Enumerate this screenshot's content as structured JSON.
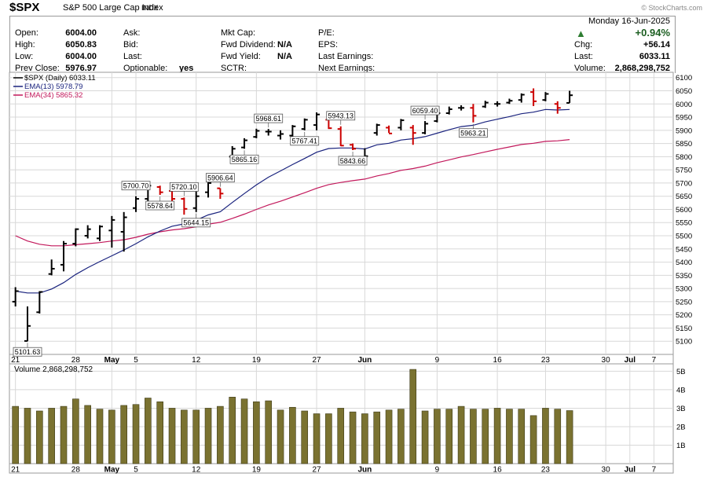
{
  "header": {
    "symbol": "$SPX",
    "name": "S&P 500 Large Cap Index",
    "exchange": "INDX",
    "brand": "© StockCharts.com"
  },
  "quote": {
    "open_label": "Open:",
    "open": "6004.00",
    "high_label": "High:",
    "high": "6050.83",
    "low_label": "Low:",
    "low": "6004.00",
    "prev_close_label": "Prev Close:",
    "prev_close": "5976.97",
    "ask_label": "Ask:",
    "bid_label": "Bid:",
    "last_label": "Last:",
    "optionable_label": "Optionable:",
    "optionable": "yes",
    "mktcap_label": "Mkt Cap:",
    "fwd_div_label": "Fwd Dividend:",
    "fwd_div": "N/A",
    "fwd_yield_label": "Fwd Yield:",
    "fwd_yield": "N/A",
    "sctr_label": "SCTR:",
    "pe_label": "P/E:",
    "eps_label": "EPS:",
    "last_earn_label": "Last Earnings:",
    "next_earn_label": "Next Earnings:",
    "date": "Monday  16-Jun-2025",
    "pct_change": "+0.94%",
    "chg_label": "Chg:",
    "chg": "+56.14",
    "last2_label": "Last:",
    "last": "6033.11",
    "volume_label": "Volume:",
    "volume": "2,868,298,752"
  },
  "colors": {
    "up_bar": "#000000",
    "down_bar": "#cc0000",
    "ema13": "#1a237e",
    "ema34": "#c2185b",
    "volume_bar": "#7a7230",
    "grid": "#d8d8d8",
    "up_arrow": "#2e7d32"
  },
  "chart_data": [
    {
      "type": "ohlc",
      "legend": [
        "$SPX (Daily) 6033.11",
        "EMA(13) 5978.79",
        "EMA(34) 5865.32"
      ],
      "ylim": [
        5050,
        6120
      ],
      "y_ticks": [
        5100,
        5150,
        5200,
        5250,
        5300,
        5350,
        5400,
        5450,
        5500,
        5550,
        5600,
        5650,
        5700,
        5750,
        5800,
        5850,
        5900,
        5950,
        6000,
        6050,
        6100
      ],
      "x_ticks": [
        {
          "label": "21",
          "day": 0
        },
        {
          "label": "28",
          "day": 5
        },
        {
          "label": "May",
          "day": 8,
          "bold": true
        },
        {
          "label": "5",
          "day": 10
        },
        {
          "label": "12",
          "day": 15
        },
        {
          "label": "19",
          "day": 20
        },
        {
          "label": "27",
          "day": 25
        },
        {
          "label": "Jun",
          "day": 29,
          "bold": true
        },
        {
          "label": "9",
          "day": 35
        },
        {
          "label": "16",
          "day": 40
        },
        {
          "label": "23",
          "day": 44
        },
        {
          "label": "30",
          "day": 49
        },
        {
          "label": "Jul",
          "day": 51,
          "bold": true
        },
        {
          "label": "7",
          "day": 53
        }
      ],
      "x_domain": [
        -0.5,
        54.6
      ],
      "bars": [
        [
          5232,
          5305,
          5250,
          5290
        ],
        [
          5100,
          5232,
          5101,
          5158
        ],
        [
          5205,
          5290,
          5210,
          5287
        ],
        [
          5350,
          5410,
          5355,
          5375
        ],
        [
          5365,
          5480,
          5390,
          5470
        ],
        [
          5460,
          5528,
          5470,
          5525
        ],
        [
          5490,
          5540,
          5500,
          5525
        ],
        [
          5480,
          5540,
          5490,
          5535
        ],
        [
          5455,
          5575,
          5520,
          5560
        ],
        [
          5440,
          5590,
          5515,
          5570
        ],
        [
          5590,
          5650,
          5605,
          5640
        ],
        [
          5620,
          5705,
          5640,
          5690
        ],
        [
          5655,
          5690,
          5685,
          5665
        ],
        [
          5615,
          5675,
          5670,
          5640
        ],
        [
          5580,
          5645,
          5640,
          5602
        ],
        [
          5590,
          5668,
          5605,
          5650
        ],
        [
          5645,
          5720,
          5665,
          5700
        ],
        [
          5640,
          5680,
          5680,
          5660
        ],
        [
          5795,
          5840,
          5800,
          5830
        ],
        [
          5830,
          5870,
          5835,
          5862
        ],
        [
          5870,
          5906,
          5875,
          5898
        ],
        [
          5880,
          5905,
          5895,
          5895
        ],
        [
          5865,
          5900,
          5880,
          5886
        ],
        [
          5870,
          5920,
          5880,
          5915
        ],
        [
          5900,
          5945,
          5905,
          5940
        ],
        [
          5900,
          5968,
          5920,
          5960
        ],
        [
          5905,
          5940,
          5940,
          5908
        ],
        [
          5840,
          5915,
          5905,
          5842
        ],
        [
          5825,
          5850,
          5845,
          5830
        ],
        [
          5767,
          5832,
          5780,
          5802
        ],
        [
          5880,
          5925,
          5890,
          5920
        ],
        [
          5890,
          5918,
          5910,
          5888
        ],
        [
          5900,
          5943,
          5910,
          5938
        ],
        [
          5845,
          5920,
          5910,
          5890
        ],
        [
          5885,
          5935,
          5890,
          5925
        ],
        [
          5930,
          5970,
          5935,
          5965
        ],
        [
          5960,
          5990,
          5965,
          5980
        ],
        [
          5975,
          5995,
          5985,
          5985
        ],
        [
          5930,
          6000,
          5985,
          5955
        ],
        [
          5985,
          6012,
          5990,
          6005
        ],
        [
          5990,
          6010,
          6000,
          6000
        ],
        [
          6000,
          6020,
          6005,
          6012
        ],
        [
          6005,
          6040,
          6015,
          6035
        ],
        [
          5992,
          6059,
          6045,
          6010
        ],
        [
          6010,
          6045,
          6015,
          6038
        ],
        [
          5963,
          6010,
          6000,
          5985
        ],
        [
          6004,
          6050,
          6004,
          6033
        ]
      ],
      "ema13": [
        5290,
        5283,
        5283,
        5298,
        5322,
        5353,
        5379,
        5402,
        5424,
        5446,
        5470,
        5496,
        5518,
        5536,
        5545,
        5559,
        5579,
        5591,
        5626,
        5660,
        5693,
        5722,
        5746,
        5770,
        5793,
        5817,
        5831,
        5833,
        5833,
        5829,
        5845,
        5851,
        5863,
        5868,
        5876,
        5889,
        5902,
        5914,
        5919,
        5932,
        5942,
        5952,
        5963,
        5969,
        5979,
        5977,
        5979
      ],
      "ema34": [
        5500,
        5480,
        5468,
        5462,
        5462,
        5466,
        5470,
        5474,
        5480,
        5485,
        5494,
        5506,
        5515,
        5522,
        5527,
        5534,
        5544,
        5551,
        5566,
        5582,
        5600,
        5617,
        5631,
        5647,
        5663,
        5680,
        5694,
        5702,
        5709,
        5715,
        5727,
        5736,
        5748,
        5755,
        5764,
        5777,
        5788,
        5799,
        5808,
        5818,
        5828,
        5837,
        5846,
        5851,
        5858,
        5860,
        5865
      ],
      "annotations": [
        {
          "day": 1,
          "value": "5101.63",
          "pos": "below"
        },
        {
          "day": 10,
          "value": "5700.70",
          "pos": "above"
        },
        {
          "day": 12,
          "value": "5578.64",
          "pos": "below"
        },
        {
          "day": 14,
          "value": "5720.10",
          "pos": "above"
        },
        {
          "day": 15,
          "value": "5644.15",
          "pos": "below"
        },
        {
          "day": 17,
          "value": "5906.64",
          "pos": "above"
        },
        {
          "day": 19,
          "value": "5865.16",
          "pos": "below"
        },
        {
          "day": 21,
          "value": "5968.61",
          "pos": "above"
        },
        {
          "day": 24,
          "value": "5767.41",
          "pos": "below"
        },
        {
          "day": 27,
          "value": "5943.13",
          "pos": "above"
        },
        {
          "day": 28,
          "value": "5843.66",
          "pos": "below"
        },
        {
          "day": 34,
          "value": "6059.40",
          "pos": "above"
        },
        {
          "day": 38,
          "value": "5963.21",
          "pos": "below"
        }
      ]
    },
    {
      "type": "bar",
      "legend": "Volume 2,868,298,752",
      "ylim": [
        0,
        5.4
      ],
      "y_ticks": [
        {
          "v": 1,
          "label": "1B"
        },
        {
          "v": 2,
          "label": "2B"
        },
        {
          "v": 3,
          "label": "3B"
        },
        {
          "v": 4,
          "label": "4B"
        },
        {
          "v": 5,
          "label": "5B"
        }
      ],
      "values": [
        3.1,
        3.0,
        2.85,
        3.0,
        3.1,
        3.5,
        3.15,
        2.95,
        2.9,
        3.15,
        3.2,
        3.55,
        3.35,
        3.0,
        2.9,
        2.9,
        3.0,
        3.1,
        3.6,
        3.5,
        3.35,
        3.4,
        2.9,
        3.05,
        2.85,
        2.7,
        2.7,
        3.0,
        2.8,
        2.7,
        2.8,
        2.9,
        2.95,
        5.1,
        2.85,
        2.95,
        2.95,
        3.1,
        2.95,
        2.95,
        3.0,
        2.95,
        2.95,
        2.6,
        3.0,
        2.95,
        2.87
      ]
    }
  ]
}
